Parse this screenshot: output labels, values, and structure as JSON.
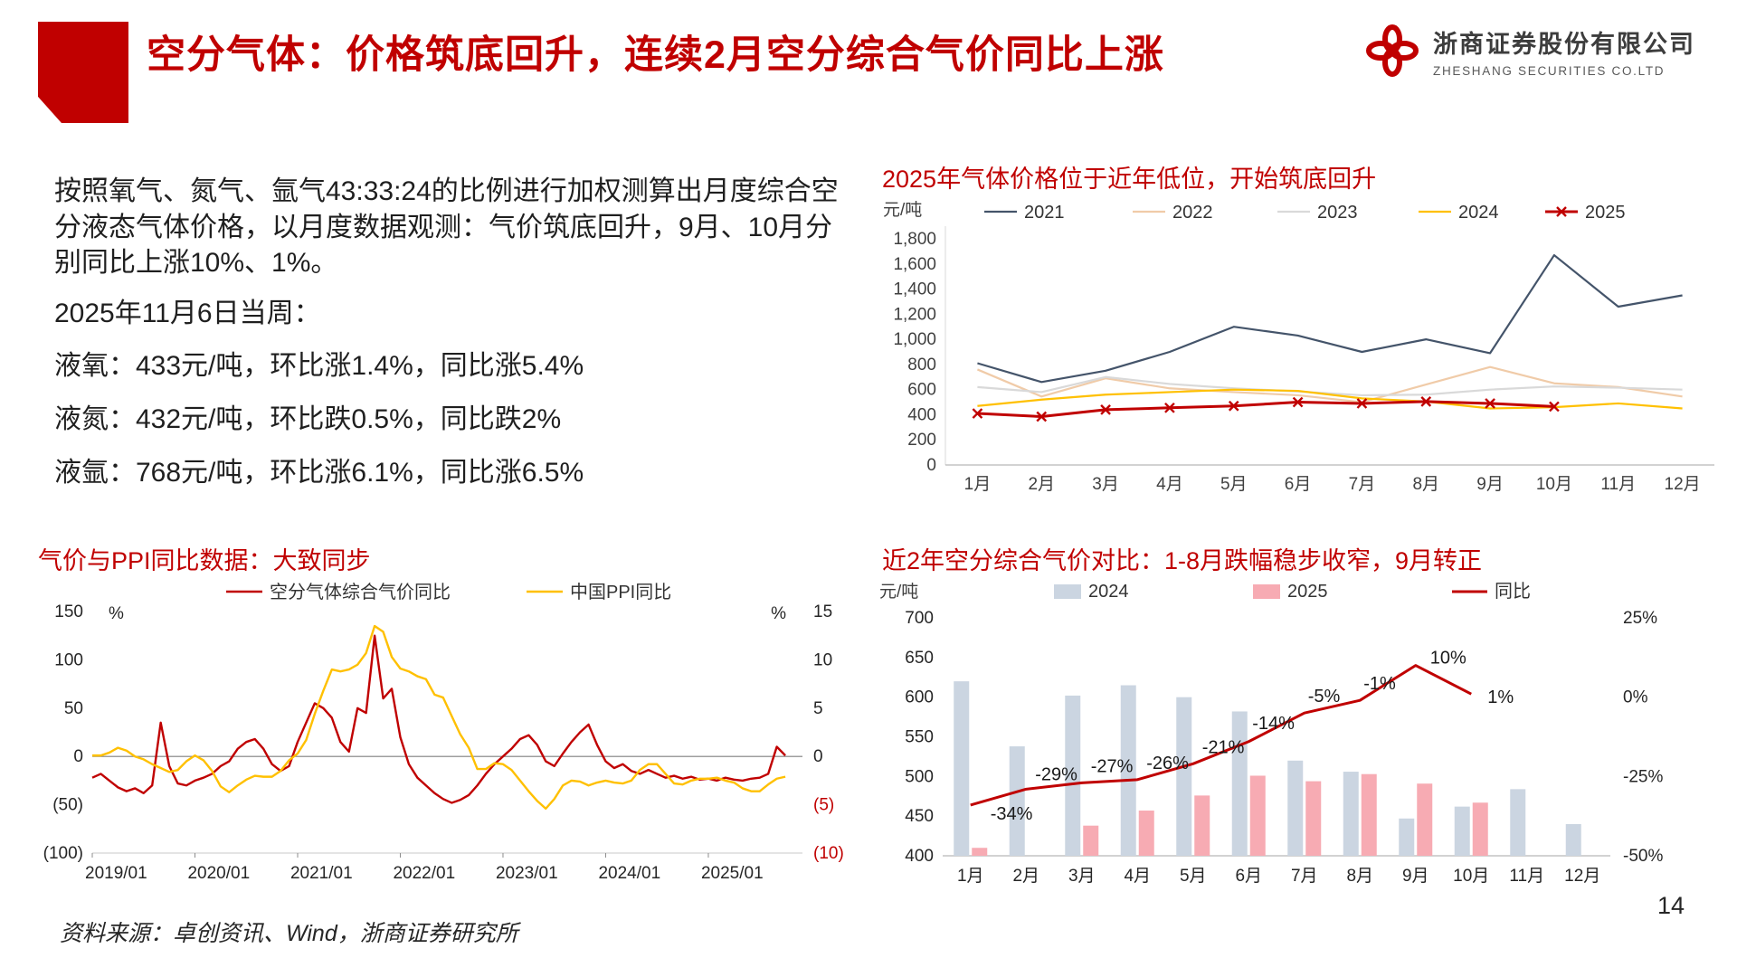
{
  "slide": {
    "title": "空分气体：价格筑底回升，连续2月空分综合气价同比上涨",
    "page_number": "14",
    "source_note": "资料来源：卓创资讯、Wind，浙商证券研究所"
  },
  "brand": {
    "company_cn": "浙商证券股份有限公司",
    "company_en": "ZHESHANG SECURITIES CO.LTD",
    "brand_red": "#C00000"
  },
  "commentary": {
    "para_method": "按照氧气、氮气、氩气43:33:24的比例进行加权测算出月度综合空分液态气体价格，以月度数据观测：气价筑底回升，9月、10月分别同比上涨10%、1%。",
    "week_label": "2025年11月6日当周：",
    "oxygen_line": "液氧：433元/吨，环比涨1.4%，同比涨5.4%",
    "nitrogen_line": "液氮：432元/吨，环比跌0.5%，同比跌2%",
    "argon_line": "液氩：768元/吨，环比涨6.1%，同比涨6.5%"
  },
  "chart_data": [
    {
      "id": "yearly_price_lines",
      "type": "line",
      "title": "2025年气体价格位于近年低位，开始筑底回升",
      "unit_label": "元/吨",
      "categories": [
        "1月",
        "2月",
        "3月",
        "4月",
        "5月",
        "6月",
        "7月",
        "8月",
        "9月",
        "10月",
        "11月",
        "12月"
      ],
      "ylim": [
        0,
        1800
      ],
      "ytick_step": 200,
      "grid": false,
      "legend_position": "top",
      "series": [
        {
          "name": "2021",
          "color": "#44546A",
          "values": [
            810,
            660,
            750,
            900,
            1100,
            1030,
            900,
            1000,
            890,
            1670,
            1260,
            1350
          ]
        },
        {
          "name": "2022",
          "color": "#F0CBA8",
          "values": [
            760,
            545,
            690,
            610,
            580,
            555,
            500,
            640,
            780,
            650,
            620,
            545
          ]
        },
        {
          "name": "2023",
          "color": "#D9D9D9",
          "values": [
            620,
            580,
            700,
            645,
            610,
            585,
            555,
            560,
            600,
            625,
            615,
            600
          ]
        },
        {
          "name": "2024",
          "color": "#FFC000",
          "values": [
            470,
            520,
            560,
            580,
            600,
            590,
            530,
            505,
            450,
            460,
            490,
            450
          ]
        },
        {
          "name": "2025",
          "color": "#C00000",
          "marker": "x",
          "values": [
            410,
            385,
            440,
            455,
            470,
            500,
            490,
            505,
            490,
            465,
            null,
            null
          ]
        }
      ]
    },
    {
      "id": "gas_vs_ppi_yoy",
      "type": "line",
      "title": "气价与PPI同比数据：大致同步",
      "left_axis": {
        "unit": "%",
        "min": -100,
        "max": 150,
        "ticks": [
          150,
          100,
          50,
          0,
          -50,
          -100
        ],
        "tick_labels": [
          "150",
          "100",
          "50",
          "0",
          "(50)",
          "(100)"
        ]
      },
      "right_axis": {
        "unit": "%",
        "min": -10,
        "max": 15,
        "ticks": [
          15,
          10,
          5,
          0,
          -5,
          -10
        ],
        "tick_labels": [
          "15",
          "10",
          "5",
          "0",
          "(5)",
          "(10)"
        ]
      },
      "x_tick_labels": [
        "2019/01",
        "2020/01",
        "2021/01",
        "2022/01",
        "2023/01",
        "2024/01",
        "2025/01"
      ],
      "months_per_tick": 12,
      "total_months": 84,
      "series": [
        {
          "name": "空分气体综合气价同比",
          "axis": "left",
          "color": "#C00000",
          "values": [
            -22,
            -18,
            -25,
            -32,
            -36,
            -33,
            -38,
            -30,
            35,
            -10,
            -28,
            -30,
            -25,
            -22,
            -18,
            -10,
            -5,
            8,
            15,
            18,
            8,
            -8,
            -15,
            -10,
            15,
            35,
            55,
            50,
            40,
            15,
            5,
            50,
            45,
            125,
            60,
            70,
            20,
            -8,
            -22,
            -30,
            -38,
            -44,
            -48,
            -45,
            -40,
            -30,
            -18,
            -8,
            0,
            8,
            18,
            22,
            12,
            -5,
            -10,
            3,
            15,
            25,
            33,
            12,
            -5,
            -12,
            -8,
            -15,
            -18,
            -14,
            -18,
            -22,
            -20,
            -23,
            -21,
            -24,
            -23,
            -25,
            -22,
            -24,
            -25,
            -23,
            -22,
            -18,
            10,
            1
          ]
        },
        {
          "name": "中国PPI同比",
          "axis": "right",
          "color": "#FFC000",
          "values": [
            0.1,
            0.1,
            0.4,
            0.9,
            0.6,
            0,
            -0.3,
            -0.8,
            -1.2,
            -1.6,
            -1.4,
            -0.5,
            0.1,
            -0.4,
            -1.5,
            -3.1,
            -3.7,
            -3,
            -2.4,
            -2,
            -2.1,
            -2.1,
            -1.5,
            -0.4,
            0.3,
            1.7,
            4.4,
            6.8,
            9,
            8.8,
            9,
            9.5,
            10.7,
            13.5,
            12.9,
            10.3,
            9.1,
            8.8,
            8.3,
            8,
            6.4,
            6.1,
            4.2,
            2.3,
            0.9,
            -1.3,
            -1.3,
            -0.7,
            -0.8,
            -1.4,
            -2.5,
            -3.6,
            -4.6,
            -5.4,
            -4.4,
            -3,
            -2.5,
            -2.6,
            -3,
            -2.7,
            -2.5,
            -2.7,
            -2.8,
            -2.5,
            -1.4,
            -0.8,
            -0.8,
            -1.8,
            -2.8,
            -2.9,
            -2.5,
            -2.3,
            -2.3,
            -2.2,
            -2.5,
            -2.7,
            -3.3,
            -3.6,
            -3.6,
            -2.9,
            -2.3,
            -2.1
          ]
        }
      ]
    },
    {
      "id": "two_year_compare",
      "type": "bar+line",
      "title": "近2年空分综合气价对比：1-8月跌幅稳步收窄，9月转正",
      "unit_label": "元/吨",
      "categories": [
        "1月",
        "2月",
        "3月",
        "4月",
        "5月",
        "6月",
        "7月",
        "8月",
        "9月",
        "10月",
        "11月",
        "12月"
      ],
      "left_axis": {
        "min": 400,
        "max": 700,
        "ticks": [
          400,
          450,
          500,
          550,
          600,
          650,
          700
        ]
      },
      "right_axis": {
        "min": -50,
        "max": 25,
        "ticks": [
          -50,
          -25,
          0,
          25
        ],
        "tick_labels": [
          "-50%",
          "-25%",
          "0%",
          "25%"
        ]
      },
      "series": [
        {
          "name": "2024",
          "type": "bar",
          "color": "#CBD5E1",
          "values": [
            620,
            538,
            602,
            615,
            600,
            582,
            520,
            506,
            447,
            462,
            484,
            440
          ]
        },
        {
          "name": "2025",
          "type": "bar",
          "color": "#F7ABB3",
          "values": [
            410,
            null,
            438,
            457,
            476,
            501,
            494,
            503,
            491,
            467,
            null,
            null
          ]
        },
        {
          "name": "同比",
          "type": "line",
          "axis": "right",
          "color": "#C00000",
          "values": [
            -34,
            -29,
            -27,
            -26,
            -21,
            -14,
            -5,
            -1,
            10,
            1,
            null,
            null
          ],
          "point_labels": [
            "-34%",
            "-29%",
            "-27%",
            "-26%",
            "-21%",
            "-14%",
            "-5%",
            "-1%",
            "10%",
            "1%"
          ]
        }
      ]
    }
  ]
}
